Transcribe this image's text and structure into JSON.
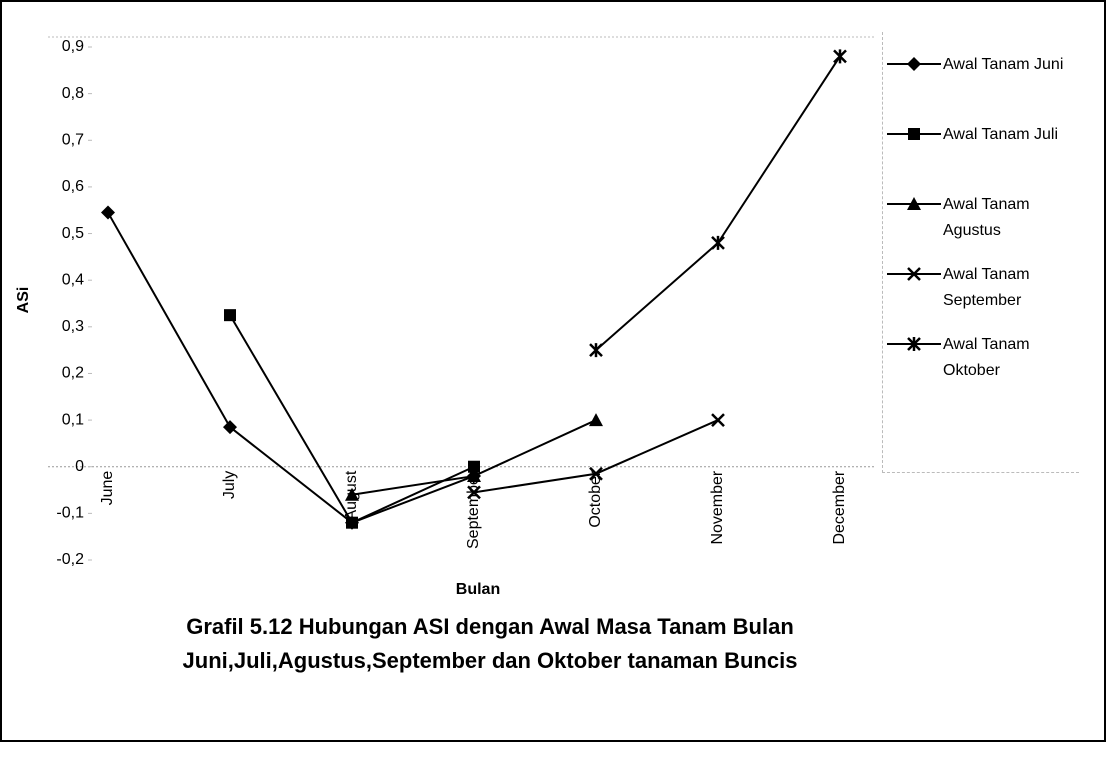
{
  "chart_data": {
    "type": "line",
    "title": [
      "Grafil 5.12 Hubungan ASI dengan Awal Masa Tanam Bulan",
      "Juni,Juli,Agustus,September dan Oktober tanaman Buncis"
    ],
    "x_label": "Bulan",
    "y_label": "ASi",
    "categories": [
      "June",
      "July",
      "August",
      "September",
      "October",
      "November",
      "December"
    ],
    "series": [
      {
        "name": "Awal Tanam Juni",
        "color": "#000000",
        "marker": "diamond",
        "values": [
          0.545,
          0.085,
          -0.12,
          -0.02,
          null,
          null,
          null
        ]
      },
      {
        "name": "Awal Tanam Juli",
        "color": "#000000",
        "marker": "square",
        "values": [
          null,
          0.325,
          -0.12,
          0.0,
          null,
          null,
          null
        ]
      },
      {
        "name": "Awal Tanam Agustus",
        "color": "#000000",
        "marker": "triangle",
        "values": [
          null,
          null,
          -0.06,
          -0.02,
          0.1,
          null,
          null
        ]
      },
      {
        "name": "Awal Tanam September",
        "color": "#000000",
        "marker": "x",
        "values": [
          null,
          null,
          null,
          -0.055,
          -0.015,
          0.1,
          null
        ]
      },
      {
        "name": "Awal Tanam Oktober",
        "color": "#000000",
        "marker": "asterisk",
        "values": [
          null,
          null,
          null,
          null,
          0.25,
          0.48,
          0.88
        ]
      }
    ],
    "ylim": [
      -0.2,
      0.9
    ],
    "yticks": [
      {
        "value": -0.2,
        "label": "-0,2"
      },
      {
        "value": -0.1,
        "label": "-0,1"
      },
      0,
      {
        "value": 0.1,
        "label": "0,1"
      },
      {
        "value": 0.2,
        "label": "0,2"
      },
      {
        "value": 0.3,
        "label": "0,3"
      },
      {
        "value": 0.4,
        "label": "0,4"
      },
      {
        "value": 0.5,
        "label": "0,5"
      },
      {
        "value": 0.6,
        "label": "0,6"
      },
      {
        "value": 0.7,
        "label": "0,7"
      },
      {
        "value": 0.8,
        "label": "0,8"
      },
      {
        "value": 0.9,
        "label": "0,9"
      }
    ],
    "legend": "right"
  }
}
